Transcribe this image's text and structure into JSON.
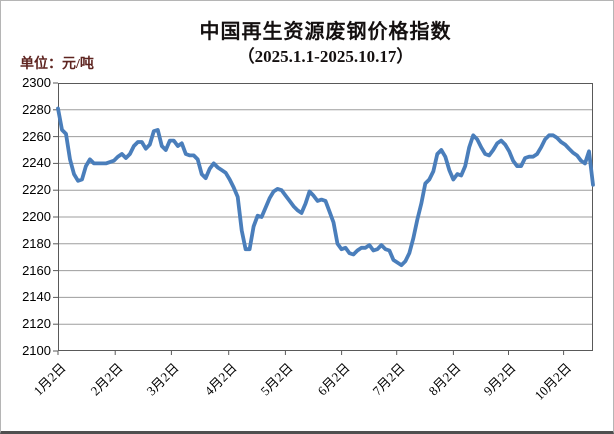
{
  "chart_data": {
    "type": "line",
    "title": "中国再生资源废钢价格指数",
    "subtitle": "（2025.1.1-2025.10.17）",
    "unit_label": "单位：元/吨",
    "ylabel": "元/吨",
    "ylim": [
      2100,
      2300
    ],
    "yticks": [
      2300,
      2280,
      2260,
      2240,
      2220,
      2200,
      2180,
      2160,
      2140,
      2120,
      2100
    ],
    "xticks": [
      {
        "label": "1月2日",
        "pos": 0.0
      },
      {
        "label": "2月2日",
        "pos": 0.107
      },
      {
        "label": "3月2日",
        "pos": 0.212
      },
      {
        "label": "4月2日",
        "pos": 0.319
      },
      {
        "label": "5月2日",
        "pos": 0.425
      },
      {
        "label": "6月2日",
        "pos": 0.53
      },
      {
        "label": "7月2日",
        "pos": 0.633
      },
      {
        "label": "8月2日",
        "pos": 0.739
      },
      {
        "label": "9月2日",
        "pos": 0.842
      },
      {
        "label": "10月2日",
        "pos": 0.945
      }
    ],
    "grid": true,
    "legend": "none",
    "line_color": "#4a7ebb",
    "values": [
      2281,
      2265,
      2262,
      2243,
      2232,
      2227,
      2228,
      2238,
      2243,
      2240,
      2240,
      2240,
      2240,
      2241,
      2242,
      2245,
      2247,
      2244,
      2247,
      2253,
      2256,
      2256,
      2251,
      2254,
      2264,
      2265,
      2253,
      2250,
      2257,
      2257,
      2253,
      2255,
      2247,
      2246,
      2246,
      2243,
      2232,
      2229,
      2236,
      2240,
      2237,
      2235,
      2233,
      2228,
      2222,
      2215,
      2190,
      2176,
      2176,
      2193,
      2201,
      2200,
      2207,
      2214,
      2219,
      2221,
      2220,
      2216,
      2212,
      2208,
      2205,
      2203,
      2210,
      2219,
      2216,
      2212,
      2213,
      2212,
      2204,
      2196,
      2180,
      2176,
      2177,
      2173,
      2172,
      2175,
      2177,
      2177,
      2179,
      2175,
      2176,
      2179,
      2176,
      2175,
      2168,
      2166,
      2164,
      2167,
      2173,
      2184,
      2198,
      2210,
      2225,
      2228,
      2234,
      2247,
      2250,
      2245,
      2235,
      2228,
      2232,
      2231,
      2238,
      2252,
      2261,
      2258,
      2252,
      2247,
      2246,
      2250,
      2255,
      2257,
      2254,
      2249,
      2242,
      2238,
      2238,
      2244,
      2245,
      2245,
      2247,
      2252,
      2258,
      2261,
      2261,
      2259,
      2256,
      2254,
      2251,
      2248,
      2246,
      2242,
      2240,
      2249,
      2224
    ]
  },
  "colors": {
    "line": "#4a7ebb",
    "gridline": "#9d9d9d",
    "axis": "#595959",
    "unit_text": "#5e2420",
    "title_text": "#141010"
  }
}
